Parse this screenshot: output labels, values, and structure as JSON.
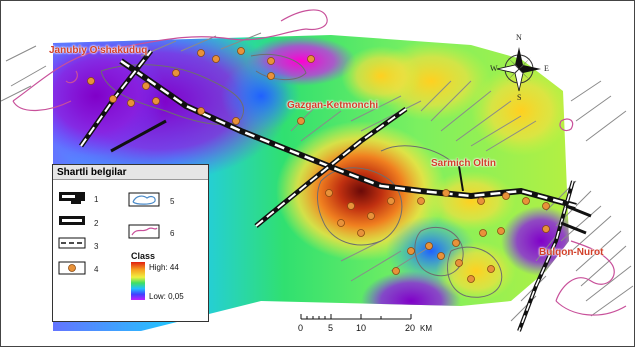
{
  "labels": {
    "janubiy": "Janubiy Oʻshakuduq",
    "gazgan": "Gazgan-Ketmonchi",
    "sarmich": "Sarmich Oltin",
    "bulqon": "Bulqon-Nurot"
  },
  "legend": {
    "title": "Shartli belgilar",
    "items": [
      "1",
      "2",
      "3",
      "4",
      "5",
      "6"
    ],
    "class_title": "Class",
    "class_high": "High: 44",
    "class_low": "Low: 0,05"
  },
  "scale": {
    "ticks": [
      "0",
      "5",
      "10",
      "20"
    ],
    "unit": "KM"
  },
  "compass": {
    "n": "N",
    "s": "S",
    "w": "W",
    "e": "E"
  },
  "colors": {
    "label": "#d2402a",
    "boundary": "#c8509a",
    "fault": "#8a8a8a",
    "deposit": "#e8923a"
  }
}
